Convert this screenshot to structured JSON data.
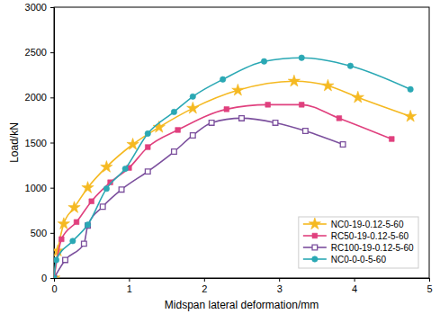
{
  "chart_data": {
    "type": "line",
    "x_label": "Midspan lateral deformation/mm",
    "y_label": "Load/kN",
    "xlim": [
      0,
      5
    ],
    "xticks": [
      0,
      1,
      2,
      3,
      4,
      5
    ],
    "ylim": [
      0,
      3000
    ],
    "yticks": [
      0,
      500,
      1000,
      1500,
      2000,
      2500,
      3000
    ],
    "grid": false,
    "legend": "lower right",
    "series": [
      {
        "name": "NC0-19-0.12-5-60",
        "color": "#f5b921",
        "marker": "star",
        "x": [
          0,
          0.05,
          0.13,
          0.27,
          0.45,
          0.7,
          1.05,
          1.4,
          1.85,
          2.45,
          3.2,
          3.65,
          4.05,
          4.75
        ],
        "values": [
          0,
          300,
          600,
          780,
          1000,
          1230,
          1480,
          1670,
          1880,
          2080,
          2180,
          2130,
          2000,
          1790
        ]
      },
      {
        "name": "RC50-19-0.12-5-60",
        "color": "#e0407e",
        "marker": "square",
        "x": [
          0,
          0.1,
          0.3,
          0.5,
          0.75,
          1.0,
          1.25,
          1.65,
          2.3,
          2.85,
          3.3,
          3.8,
          4.5
        ],
        "values": [
          0,
          430,
          620,
          850,
          1060,
          1220,
          1450,
          1640,
          1870,
          1920,
          1920,
          1770,
          1540
        ]
      },
      {
        "name": "RC100-19-0.12-5-60",
        "color": "#7b4f9d",
        "marker": "open-square",
        "x": [
          0,
          0.15,
          0.4,
          0.45,
          0.65,
          0.9,
          1.25,
          1.6,
          1.85,
          2.1,
          2.5,
          2.95,
          3.35,
          3.85
        ],
        "values": [
          0,
          200,
          380,
          580,
          790,
          980,
          1180,
          1400,
          1580,
          1720,
          1770,
          1720,
          1630,
          1480
        ]
      },
      {
        "name": "NC0-0-0-5-60",
        "color": "#2aa8b4",
        "marker": "circle",
        "x": [
          0,
          0.03,
          0.25,
          0.45,
          0.7,
          0.95,
          1.25,
          1.6,
          1.85,
          2.25,
          2.8,
          3.3,
          3.95,
          4.75
        ],
        "values": [
          0,
          200,
          410,
          590,
          990,
          1210,
          1600,
          1840,
          2010,
          2200,
          2400,
          2440,
          2350,
          2090
        ]
      }
    ]
  }
}
